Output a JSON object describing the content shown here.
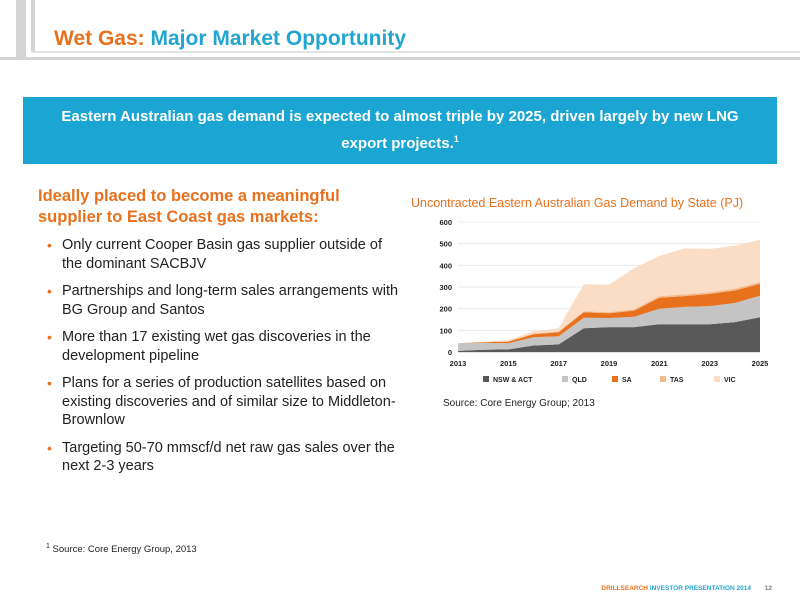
{
  "title": {
    "part1": "Wet Gas:",
    "part2": "Major Market Opportunity"
  },
  "banner": {
    "text": "Eastern Australian gas demand is expected to almost triple by 2025, driven largely by new LNG export projects.",
    "footnote_mark": "1"
  },
  "subheading": "Ideally placed to become a meaningful supplier to East Coast gas markets:",
  "bullets": [
    "Only current Cooper Basin gas supplier outside of the dominant SACBJV",
    "Partnerships and long-term sales arrangements with BG Group and Santos",
    "More than 17 existing wet gas discoveries in the development pipeline",
    "Plans for a series of production satellites based on existing discoveries and of similar size to Middleton-Brownlow",
    "Targeting 50-70 mmscf/d net raw gas sales over the next 2-3 years"
  ],
  "chart_data": {
    "type": "area",
    "stacked": true,
    "title": "Uncontracted Eastern Australian Gas Demand by State (PJ)",
    "source": "Source: Core Energy Group; 2013",
    "x": [
      2013,
      2014,
      2015,
      2016,
      2017,
      2018,
      2019,
      2020,
      2021,
      2022,
      2023,
      2024,
      2025
    ],
    "xticks": [
      "2013",
      "2015",
      "2017",
      "2019",
      "2021",
      "2023",
      "2025"
    ],
    "yticks": [
      "0",
      "100",
      "200",
      "300",
      "400",
      "500",
      "600"
    ],
    "ylim": [
      0,
      600
    ],
    "legend_position": "bottom",
    "series": [
      {
        "name": "NSW & ACT",
        "color": "#595959",
        "values": [
          5,
          10,
          12,
          30,
          35,
          110,
          115,
          115,
          128,
          128,
          128,
          138,
          160
        ]
      },
      {
        "name": "QLD",
        "color": "#c4c4c4",
        "values": [
          35,
          32,
          28,
          38,
          38,
          48,
          42,
          48,
          72,
          80,
          84,
          88,
          100
        ]
      },
      {
        "name": "SA",
        "color": "#e8711e",
        "values": [
          0,
          3,
          8,
          14,
          18,
          25,
          22,
          28,
          50,
          50,
          56,
          58,
          55
        ]
      },
      {
        "name": "TAS",
        "color": "#f6b98a",
        "values": [
          0,
          1,
          2,
          3,
          4,
          5,
          5,
          6,
          8,
          8,
          8,
          8,
          8
        ]
      },
      {
        "name": "VIC",
        "color": "#fbdcc4",
        "values": [
          0,
          2,
          5,
          10,
          15,
          125,
          126,
          190,
          185,
          212,
          200,
          198,
          195
        ]
      }
    ]
  },
  "footnote": {
    "mark": "1",
    "text": "Source: Core Energy Group, 2013"
  },
  "footer": {
    "brand": "DRILLSEARCH",
    "presentation": "INVESTOR PRESENTATION 2014",
    "page": "12"
  }
}
